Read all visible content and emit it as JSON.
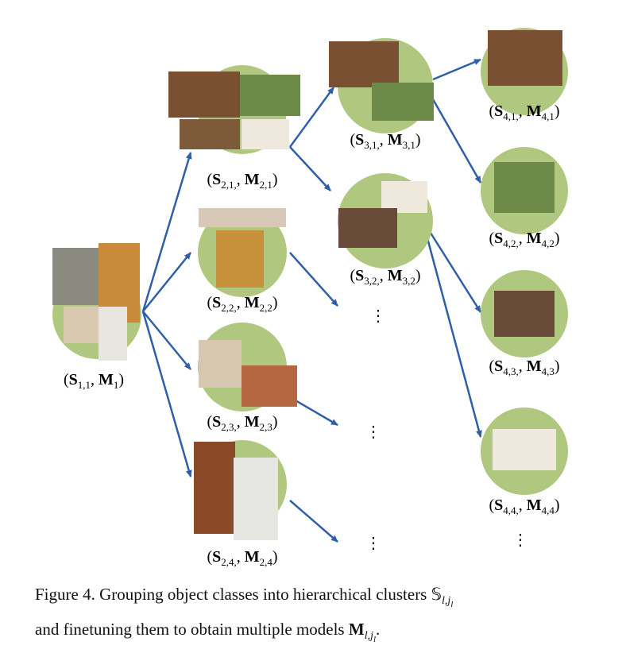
{
  "nodes": [
    {
      "label": [
        "(",
        "S",
        "1,1",
        ", ",
        "M",
        "1",
        ")"
      ]
    },
    {
      "label": [
        "(",
        "S",
        "2,1,",
        ", ",
        "M",
        "2,1",
        ")"
      ]
    },
    {
      "label": [
        "(",
        "S",
        "2,2,",
        ", ",
        "M",
        "2,2",
        ")"
      ]
    },
    {
      "label": [
        "(",
        "S",
        "2,3,",
        ", ",
        "M",
        "2,3",
        ")"
      ]
    },
    {
      "label": [
        "(",
        "S",
        "2,4,",
        ", ",
        "M",
        "2,4",
        ")"
      ]
    },
    {
      "label": [
        "(",
        "S",
        "3,1,",
        ", ",
        "M",
        "3,1",
        ")"
      ]
    },
    {
      "label": [
        "(",
        "S",
        "3,2,",
        ", ",
        "M",
        "3,2",
        ")"
      ]
    },
    {
      "label": [
        "(",
        "S",
        "4,1,",
        ", ",
        "M",
        "4,1",
        ")"
      ]
    },
    {
      "label": [
        "(",
        "S",
        "4,2,",
        ", ",
        "M",
        "4,2",
        ")"
      ]
    },
    {
      "label": [
        "(",
        "S",
        "4,3,",
        ", ",
        "M",
        "4,3",
        ")"
      ]
    },
    {
      "label": [
        "(",
        "S",
        "4,4,",
        ", ",
        "M",
        "4,4",
        ")"
      ]
    }
  ],
  "ellipses": [
    "⋮",
    "⋮",
    "⋮",
    "⋮"
  ],
  "caption": {
    "line1": "Figure 4. Grouping object classes into hierarchical clusters ",
    "sym1": "𝕊",
    "sub1": "l,j",
    "subsub1": "l",
    "line2": "and finetuning them to obtain multiple models ",
    "sym2": "M",
    "sub2": "l,j",
    "subsub2": "l",
    "end": "."
  }
}
